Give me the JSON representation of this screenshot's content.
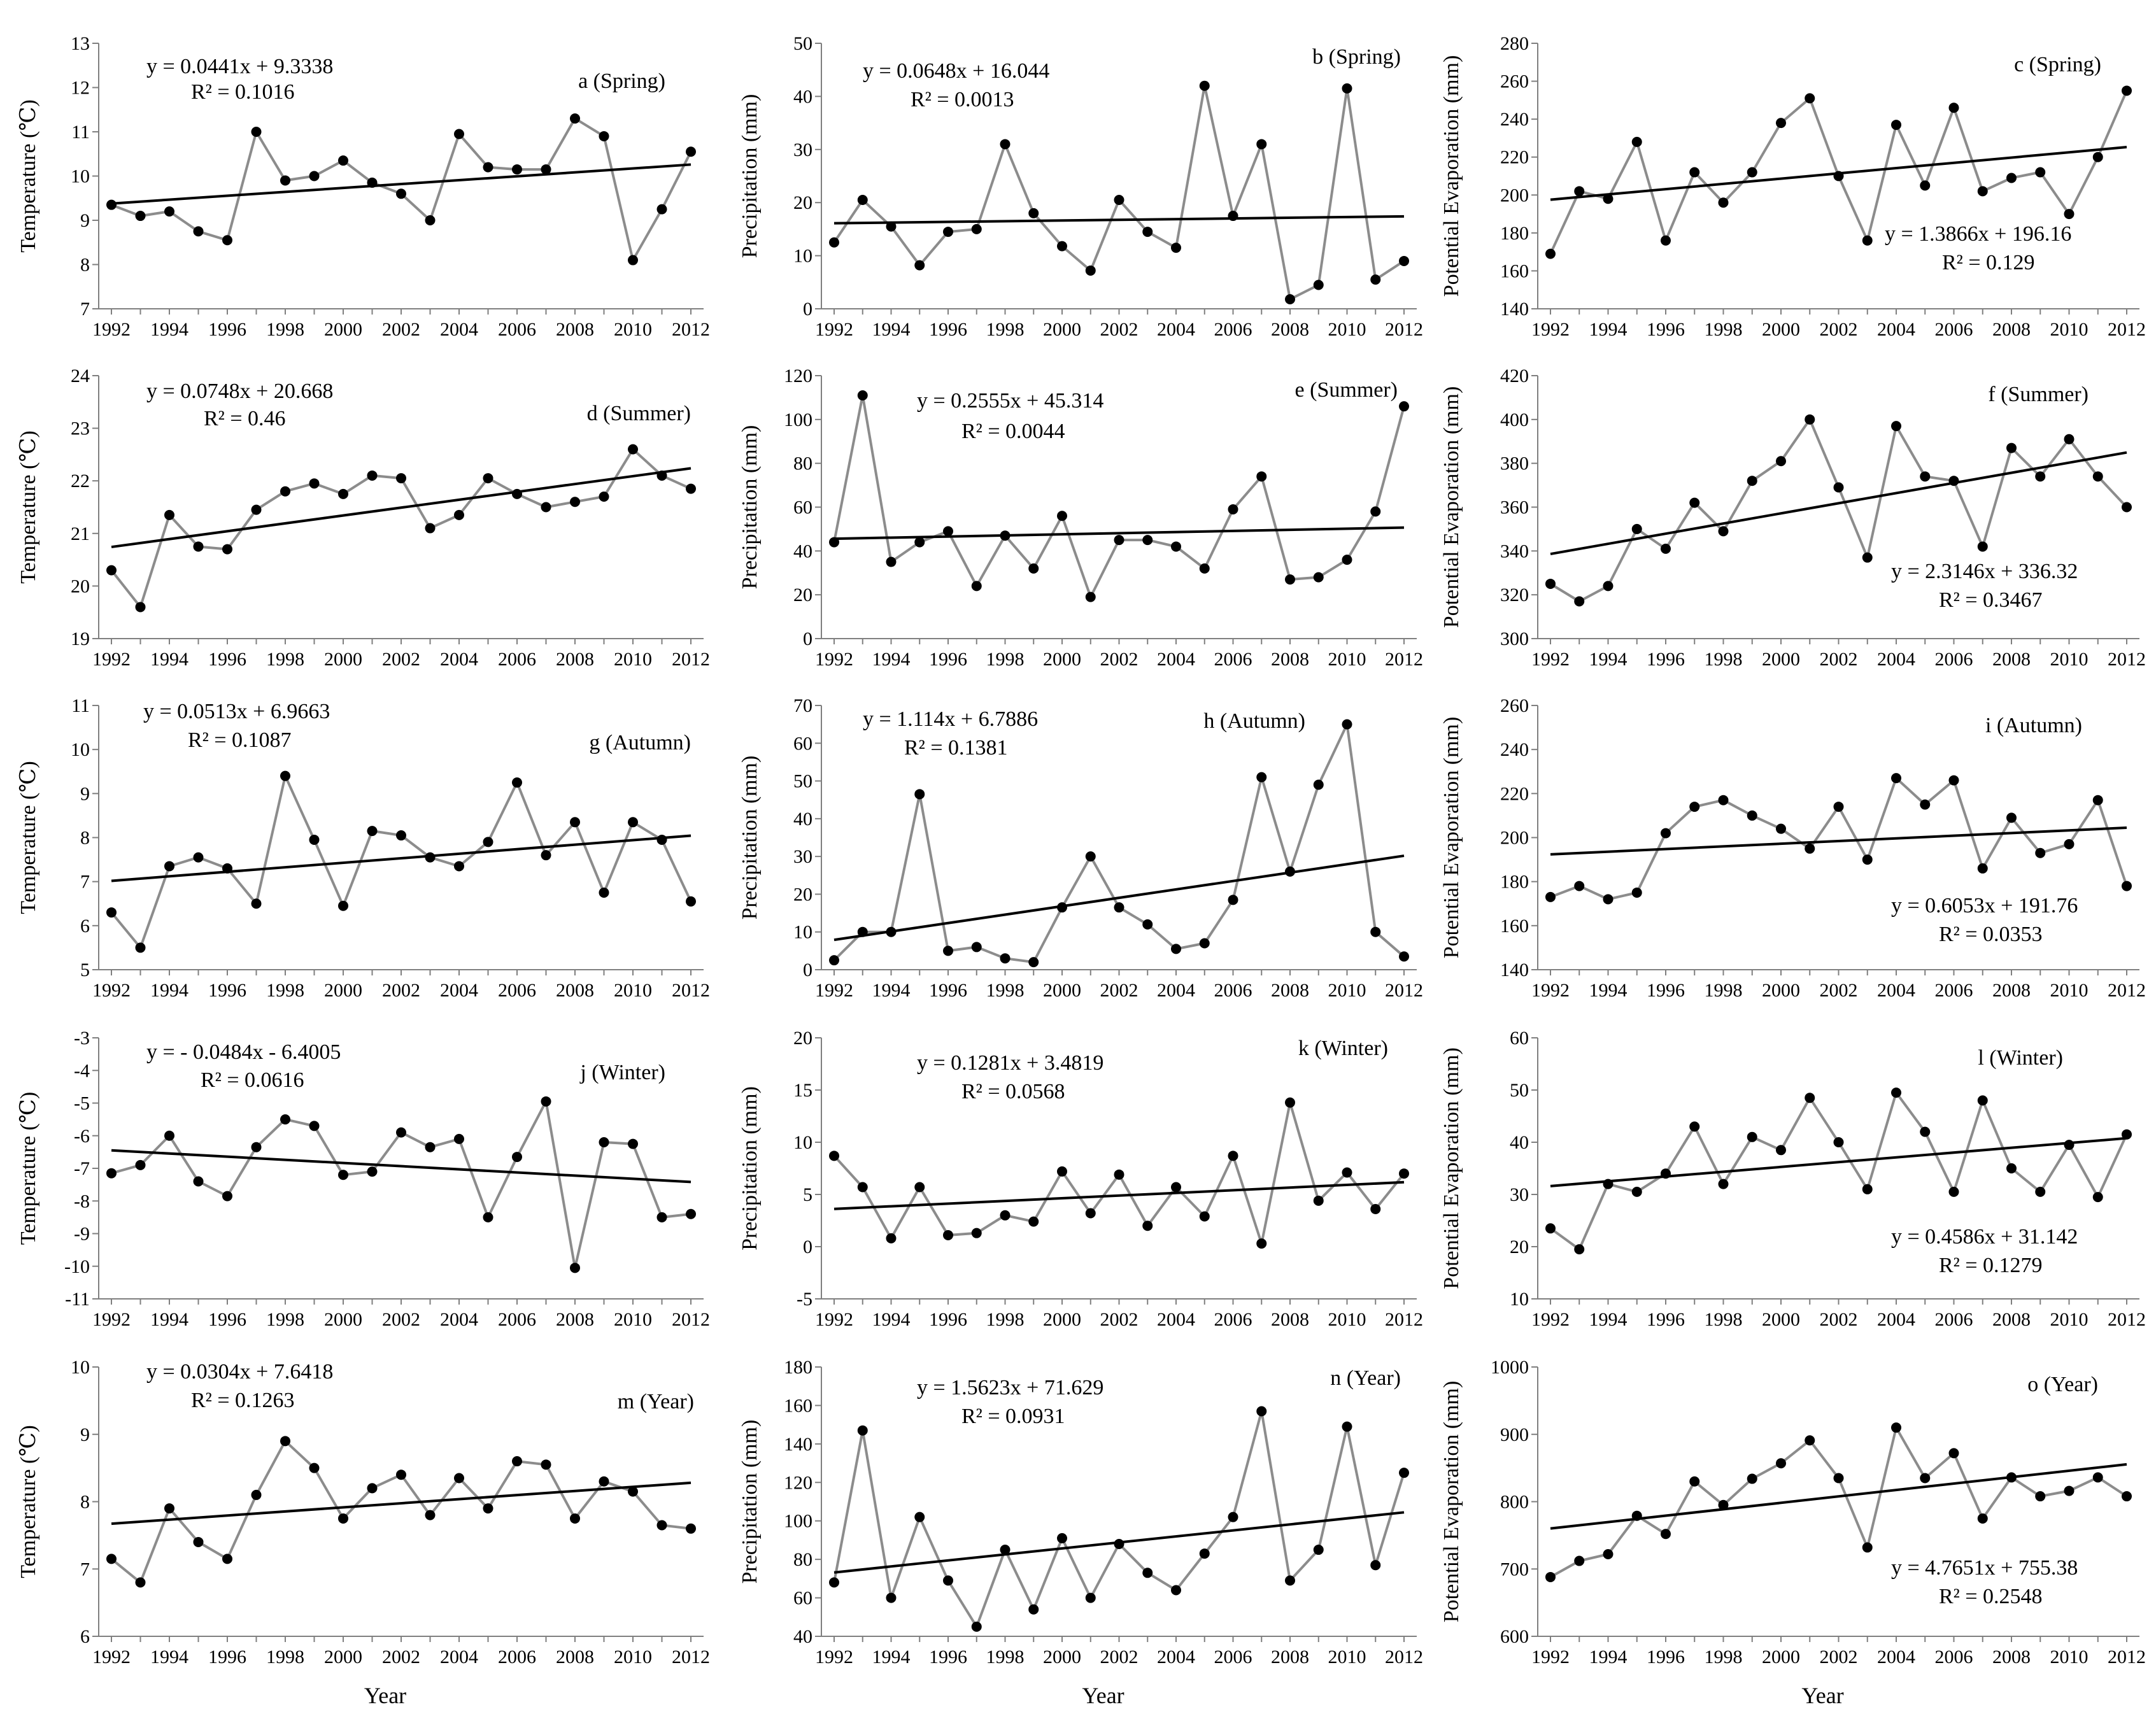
{
  "colors": {
    "series": "#8c8c8c",
    "marker": "#000000",
    "trend": "#000000",
    "axis": "#7f7f7f"
  },
  "chart_data": [
    {
      "type": "line",
      "title": "a (Spring)",
      "ylabel": "Temperature (℃)",
      "xlabel": "",
      "ylim": [
        7,
        13
      ],
      "yticks": [
        7,
        8,
        9,
        10,
        11,
        12,
        13
      ],
      "equation": "y = 0.0441x + 9.3338",
      "r2": "R² = 0.1016",
      "trend": {
        "slope": 0.0441,
        "intercept": 9.3338
      },
      "x": [
        1992,
        1993,
        1994,
        1995,
        1996,
        1997,
        1998,
        1999,
        2000,
        2001,
        2002,
        2003,
        2004,
        2005,
        2006,
        2007,
        2008,
        2009,
        2010,
        2011,
        2012
      ],
      "values": [
        9.35,
        9.1,
        9.2,
        8.75,
        8.55,
        11.0,
        9.9,
        10.0,
        10.35,
        9.85,
        9.6,
        9.0,
        10.95,
        10.2,
        10.15,
        10.15,
        11.3,
        10.9,
        8.1,
        9.25,
        10.55
      ]
    },
    {
      "type": "line",
      "title": "b (Spring)",
      "ylabel": "Precipitation (mm)",
      "xlabel": "",
      "ylim": [
        0,
        50
      ],
      "yticks": [
        0,
        10,
        20,
        30,
        40,
        50
      ],
      "equation": "y = 0.0648x + 16.044",
      "r2": "R² = 0.0013",
      "trend": {
        "slope": 0.0648,
        "intercept": 16.044
      },
      "x": [
        1992,
        1993,
        1994,
        1995,
        1996,
        1997,
        1998,
        1999,
        2000,
        2001,
        2002,
        2003,
        2004,
        2005,
        2006,
        2007,
        2008,
        2009,
        2010,
        2011,
        2012
      ],
      "values": [
        12.5,
        20.5,
        15.5,
        8.2,
        14.5,
        15.0,
        31.0,
        18.0,
        11.8,
        7.2,
        20.5,
        14.5,
        11.5,
        42.0,
        17.5,
        31.0,
        1.8,
        4.5,
        41.5,
        5.5,
        9.0
      ]
    },
    {
      "type": "line",
      "title": "c (Spring)",
      "ylabel": "Potential Evaporation (mm)",
      "xlabel": "",
      "ylim": [
        140,
        280
      ],
      "yticks": [
        140,
        160,
        180,
        200,
        220,
        240,
        260,
        280
      ],
      "equation": "y = 1.3866x + 196.16",
      "r2": "R² = 0.129",
      "trend": {
        "slope": 1.3866,
        "intercept": 196.16
      },
      "x": [
        1992,
        1993,
        1994,
        1995,
        1996,
        1997,
        1998,
        1999,
        2000,
        2001,
        2002,
        2003,
        2004,
        2005,
        2006,
        2007,
        2008,
        2009,
        2010,
        2011,
        2012
      ],
      "values": [
        169,
        202,
        198,
        228,
        176,
        212,
        196,
        212,
        238,
        251,
        210,
        176,
        237,
        205,
        246,
        202,
        209,
        212,
        190,
        220,
        255
      ]
    },
    {
      "type": "line",
      "title": "d (Summer)",
      "ylabel": "Temperature (℃)",
      "xlabel": "",
      "ylim": [
        19,
        24
      ],
      "yticks": [
        19,
        20,
        21,
        22,
        23,
        24
      ],
      "equation": "y = 0.0748x + 20.668",
      "r2": "R² = 0.46",
      "trend": {
        "slope": 0.0748,
        "intercept": 20.668
      },
      "x": [
        1992,
        1993,
        1994,
        1995,
        1996,
        1997,
        1998,
        1999,
        2000,
        2001,
        2002,
        2003,
        2004,
        2005,
        2006,
        2007,
        2008,
        2009,
        2010,
        2011,
        2012
      ],
      "values": [
        20.3,
        19.6,
        21.35,
        20.75,
        20.7,
        21.45,
        21.8,
        21.95,
        21.75,
        22.1,
        22.05,
        21.1,
        21.35,
        22.05,
        21.75,
        21.5,
        21.6,
        21.7,
        22.6,
        22.1,
        21.85
      ]
    },
    {
      "type": "line",
      "title": "e (Summer)",
      "ylabel": "Precipitation (mm)",
      "xlabel": "",
      "ylim": [
        0,
        120
      ],
      "yticks": [
        0,
        20,
        40,
        60,
        80,
        100,
        120
      ],
      "equation": "y = 0.2555x + 45.314",
      "r2": "R² = 0.0044",
      "trend": {
        "slope": 0.2555,
        "intercept": 45.314
      },
      "x": [
        1992,
        1993,
        1994,
        1995,
        1996,
        1997,
        1998,
        1999,
        2000,
        2001,
        2002,
        2003,
        2004,
        2005,
        2006,
        2007,
        2008,
        2009,
        2010,
        2011,
        2012
      ],
      "values": [
        44,
        111,
        35,
        44,
        49,
        24,
        47,
        32,
        56,
        19,
        45,
        45,
        42,
        32,
        59,
        74,
        27,
        28,
        36,
        58,
        106
      ]
    },
    {
      "type": "line",
      "title": "f (Summer)",
      "ylabel": "Potential Evaporation (mm)",
      "xlabel": "",
      "ylim": [
        300,
        420
      ],
      "yticks": [
        300,
        320,
        340,
        360,
        380,
        400,
        420
      ],
      "equation": "y = 2.3146x + 336.32",
      "r2": "R² = 0.3467",
      "trend": {
        "slope": 2.3146,
        "intercept": 336.32
      },
      "x": [
        1992,
        1993,
        1994,
        1995,
        1996,
        1997,
        1998,
        1999,
        2000,
        2001,
        2002,
        2003,
        2004,
        2005,
        2006,
        2007,
        2008,
        2009,
        2010,
        2011,
        2012
      ],
      "values": [
        325,
        317,
        324,
        350,
        341,
        362,
        349,
        372,
        381,
        400,
        369,
        337,
        397,
        374,
        372,
        342,
        387,
        374,
        391,
        374,
        360
      ]
    },
    {
      "type": "line",
      "title": "g (Autumn)",
      "ylabel": "Temperature (℃)",
      "xlabel": "",
      "ylim": [
        5,
        11
      ],
      "yticks": [
        5,
        6,
        7,
        8,
        9,
        10,
        11
      ],
      "equation": "y = 0.0513x + 6.9663",
      "r2": "R² = 0.1087",
      "trend": {
        "slope": 0.0513,
        "intercept": 6.9663
      },
      "x": [
        1992,
        1993,
        1994,
        1995,
        1996,
        1997,
        1998,
        1999,
        2000,
        2001,
        2002,
        2003,
        2004,
        2005,
        2006,
        2007,
        2008,
        2009,
        2010,
        2011,
        2012
      ],
      "values": [
        6.3,
        5.5,
        7.35,
        7.55,
        7.3,
        6.5,
        9.4,
        7.95,
        6.45,
        8.15,
        8.05,
        7.55,
        7.35,
        7.9,
        9.25,
        7.6,
        8.35,
        6.75,
        8.35,
        7.95,
        6.55
      ]
    },
    {
      "type": "line",
      "title": "h (Autumn)",
      "ylabel": "Precipitation (mm)",
      "xlabel": "",
      "ylim": [
        0,
        70
      ],
      "yticks": [
        0,
        10,
        20,
        30,
        40,
        50,
        60,
        70
      ],
      "equation": "y = 1.114x + 6.7886",
      "r2": "R² = 0.1381",
      "trend": {
        "slope": 1.114,
        "intercept": 6.7886
      },
      "x": [
        1992,
        1993,
        1994,
        1995,
        1996,
        1997,
        1998,
        1999,
        2000,
        2001,
        2002,
        2003,
        2004,
        2005,
        2006,
        2007,
        2008,
        2009,
        2010,
        2011,
        2012
      ],
      "values": [
        2.5,
        10,
        10,
        46.5,
        5,
        6,
        3,
        2,
        16.5,
        30,
        16.5,
        12,
        5.5,
        7,
        18.5,
        51,
        26,
        49,
        65,
        10,
        3.5
      ]
    },
    {
      "type": "line",
      "title": "i (Autumn)",
      "ylabel": "Potential Evaporation (mm)",
      "xlabel": "",
      "ylim": [
        140,
        260
      ],
      "yticks": [
        140,
        160,
        180,
        200,
        220,
        240,
        260
      ],
      "equation": "y = 0.6053x + 191.76",
      "r2": "R² = 0.0353",
      "trend": {
        "slope": 0.6053,
        "intercept": 191.76
      },
      "x": [
        1992,
        1993,
        1994,
        1995,
        1996,
        1997,
        1998,
        1999,
        2000,
        2001,
        2002,
        2003,
        2004,
        2005,
        2006,
        2007,
        2008,
        2009,
        2010,
        2011,
        2012
      ],
      "values": [
        173,
        178,
        172,
        175,
        202,
        214,
        217,
        210,
        204,
        195,
        214,
        190,
        227,
        215,
        226,
        186,
        209,
        193,
        197,
        217,
        178
      ]
    },
    {
      "type": "line",
      "title": "j (Winter)",
      "ylabel": "Temperature (℃)",
      "xlabel": "",
      "ylim": [
        -11,
        -3
      ],
      "yticks": [
        -11,
        -10,
        -9,
        -8,
        -7,
        -6,
        -5,
        -4,
        -3
      ],
      "equation": "y = - 0.0484x - 6.4005",
      "r2": "R² = 0.0616",
      "trend": {
        "slope": -0.0484,
        "intercept": -6.4005
      },
      "x": [
        1992,
        1993,
        1994,
        1995,
        1996,
        1997,
        1998,
        1999,
        2000,
        2001,
        2002,
        2003,
        2004,
        2005,
        2006,
        2007,
        2008,
        2009,
        2010,
        2011,
        2012
      ],
      "values": [
        -7.15,
        -6.9,
        -6.0,
        -7.4,
        -7.85,
        -6.35,
        -5.5,
        -5.7,
        -7.2,
        -7.1,
        -5.9,
        -6.35,
        -6.1,
        -8.5,
        -6.65,
        -4.95,
        -10.05,
        -6.2,
        -6.25,
        -8.5,
        -8.4
      ]
    },
    {
      "type": "line",
      "title": "k (Winter)",
      "ylabel": "Precipitation (mm)",
      "xlabel": "",
      "ylim": [
        -5,
        20
      ],
      "yticks": [
        -5,
        0,
        5,
        10,
        15,
        20
      ],
      "equation": "y = 0.1281x + 3.4819",
      "r2": "R² = 0.0568",
      "trend": {
        "slope": 0.1281,
        "intercept": 3.4819
      },
      "x": [
        1992,
        1993,
        1994,
        1995,
        1996,
        1997,
        1998,
        1999,
        2000,
        2001,
        2002,
        2003,
        2004,
        2005,
        2006,
        2007,
        2008,
        2009,
        2010,
        2011,
        2012
      ],
      "values": [
        8.7,
        5.7,
        0.8,
        5.7,
        1.1,
        1.3,
        3.0,
        2.4,
        7.2,
        3.2,
        6.9,
        2.0,
        5.7,
        2.9,
        8.7,
        0.3,
        13.8,
        4.4,
        7.1,
        3.6,
        7.0
      ]
    },
    {
      "type": "line",
      "title": "l (Winter)",
      "ylabel": "Potential Evaporation (mm)",
      "xlabel": "",
      "ylim": [
        10,
        60
      ],
      "yticks": [
        10,
        20,
        30,
        40,
        50,
        60
      ],
      "equation": "y = 0.4586x + 31.142",
      "r2": "R² = 0.1279",
      "trend": {
        "slope": 0.4586,
        "intercept": 31.142
      },
      "x": [
        1992,
        1993,
        1994,
        1995,
        1996,
        1997,
        1998,
        1999,
        2000,
        2001,
        2002,
        2003,
        2004,
        2005,
        2006,
        2007,
        2008,
        2009,
        2010,
        2011,
        2012
      ],
      "values": [
        23.5,
        19.5,
        32,
        30.5,
        34,
        43,
        32,
        41,
        38.5,
        48.5,
        40,
        31,
        49.5,
        42,
        30.5,
        48,
        35,
        30.5,
        39.5,
        29.5,
        41.5
      ]
    },
    {
      "type": "line",
      "title": "m (Year)",
      "ylabel": "Temperature (℃)",
      "xlabel": "Year",
      "ylim": [
        6,
        10
      ],
      "yticks": [
        6,
        7,
        8,
        9,
        10
      ],
      "equation": "y = 0.0304x + 7.6418",
      "r2": "R² = 0.1263",
      "trend": {
        "slope": 0.0304,
        "intercept": 7.6418
      },
      "x": [
        1992,
        1993,
        1994,
        1995,
        1996,
        1997,
        1998,
        1999,
        2000,
        2001,
        2002,
        2003,
        2004,
        2005,
        2006,
        2007,
        2008,
        2009,
        2010,
        2011,
        2012
      ],
      "values": [
        7.15,
        6.8,
        7.9,
        7.4,
        7.15,
        8.1,
        8.9,
        8.5,
        7.75,
        8.2,
        8.4,
        7.8,
        8.35,
        7.9,
        8.6,
        8.55,
        7.75,
        8.3,
        8.15,
        7.65,
        7.6
      ]
    },
    {
      "type": "line",
      "title": "n (Year)",
      "ylabel": "Precipitation (mm)",
      "xlabel": "Year",
      "ylim": [
        40,
        180
      ],
      "yticks": [
        40,
        60,
        80,
        100,
        120,
        140,
        160,
        180
      ],
      "equation": "y = 1.5623x + 71.629",
      "r2": "R² = 0.0931",
      "trend": {
        "slope": 1.5623,
        "intercept": 71.629
      },
      "x": [
        1992,
        1993,
        1994,
        1995,
        1996,
        1997,
        1998,
        1999,
        2000,
        2001,
        2002,
        2003,
        2004,
        2005,
        2006,
        2007,
        2008,
        2009,
        2010,
        2011,
        2012
      ],
      "values": [
        68,
        147,
        60,
        102,
        69,
        45,
        85,
        54,
        91,
        60,
        88,
        73,
        64,
        83,
        102,
        157,
        69,
        85,
        149,
        77,
        125
      ]
    },
    {
      "type": "line",
      "title": "o (Year)",
      "ylabel": "Potential Evaporation (mm)",
      "xlabel": "Year",
      "ylim": [
        600,
        1000
      ],
      "yticks": [
        600,
        700,
        800,
        900,
        1000
      ],
      "equation": "y = 4.7651x + 755.38",
      "r2": "R² = 0.2548",
      "trend": {
        "slope": 4.7651,
        "intercept": 755.38
      },
      "x": [
        1992,
        1993,
        1994,
        1995,
        1996,
        1997,
        1998,
        1999,
        2000,
        2001,
        2002,
        2003,
        2004,
        2005,
        2006,
        2007,
        2008,
        2009,
        2010,
        2011,
        2012
      ],
      "values": [
        688,
        712,
        722,
        779,
        752,
        830,
        795,
        834,
        857,
        891,
        835,
        732,
        910,
        835,
        872,
        775,
        836,
        808,
        816,
        836,
        808
      ]
    }
  ]
}
